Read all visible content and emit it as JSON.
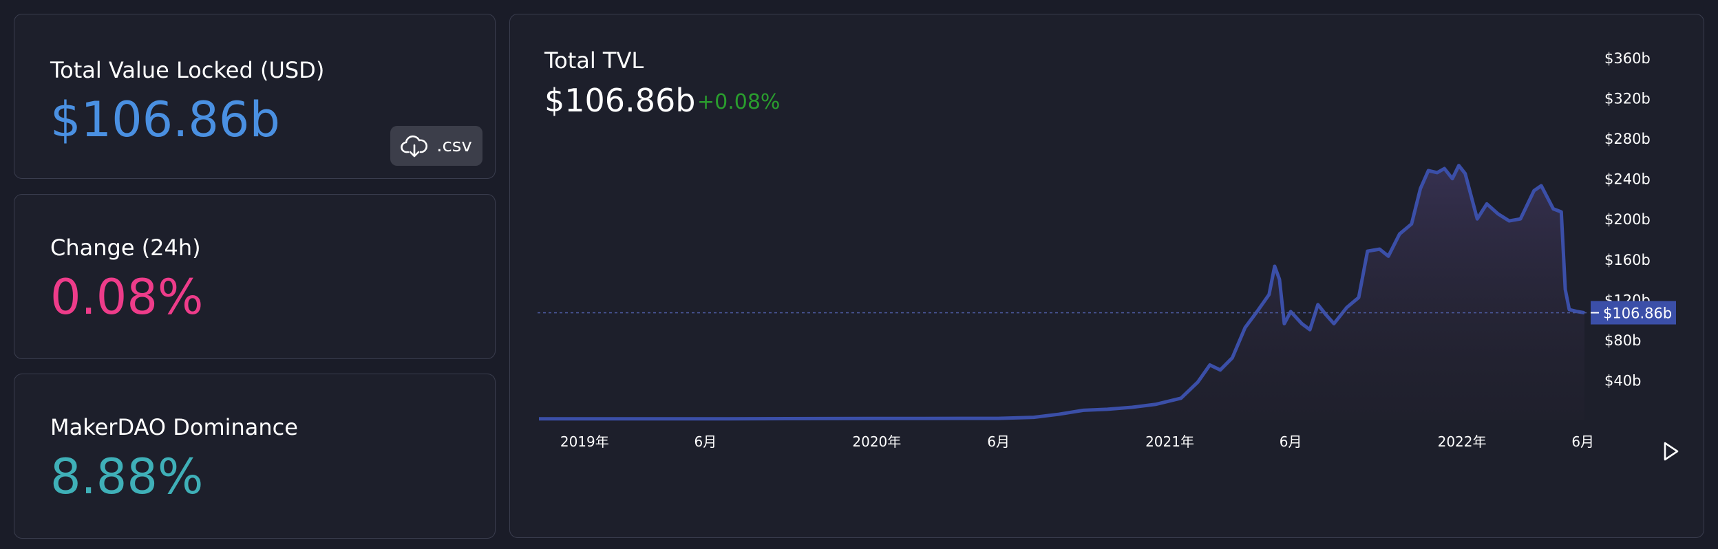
{
  "stats": {
    "tvl": {
      "label": "Total Value Locked (USD)",
      "value": "$106.86b",
      "csv_label": ".csv",
      "color": "#4a90e2"
    },
    "change": {
      "label": "Change (24h)",
      "value": "0.08%",
      "color": "#ee3c8a"
    },
    "dominance": {
      "label": "MakerDAO Dominance",
      "value": "8.88%",
      "color": "#3fb0b8"
    }
  },
  "chart_header": {
    "title": "Total TVL",
    "value": "$106.86b",
    "change": "+0.08%"
  },
  "chart_data": {
    "type": "area",
    "title": "",
    "xlabel": "",
    "ylabel": "",
    "ylim": [
      0,
      360
    ],
    "x_ticks": [
      "2019年",
      "6月",
      "2020年",
      "6月",
      "2021年",
      "6月",
      "2022年",
      "6月"
    ],
    "x_tick_dates": [
      "2019-01-01",
      "2019-06-01",
      "2020-01-01",
      "2020-06-01",
      "2021-01-01",
      "2021-06-01",
      "2022-01-01",
      "2022-06-01"
    ],
    "y_ticks": [
      "$360b",
      "$320b",
      "$280b",
      "$240b",
      "$200b",
      "$160b",
      "$120b",
      "$80b",
      "$40b"
    ],
    "y_tick_values": [
      360,
      320,
      280,
      240,
      200,
      160,
      120,
      80,
      40
    ],
    "current_label": "$106.86b",
    "current_value": 106.86,
    "series": [
      {
        "color": "#3b4fa8",
        "points": [
          [
            "2018-11-05",
            1.5
          ],
          [
            "2019-03-01",
            1.5
          ],
          [
            "2019-07-01",
            1.6
          ],
          [
            "2019-11-01",
            1.8
          ],
          [
            "2020-03-01",
            1.9
          ],
          [
            "2020-06-01",
            2.0
          ],
          [
            "2020-07-15",
            3.0
          ],
          [
            "2020-08-15",
            6.0
          ],
          [
            "2020-09-15",
            10.0
          ],
          [
            "2020-10-15",
            11.0
          ],
          [
            "2020-11-15",
            13.0
          ],
          [
            "2020-12-15",
            16.0
          ],
          [
            "2021-01-15",
            22.0
          ],
          [
            "2021-02-05",
            38.0
          ],
          [
            "2021-02-20",
            55.0
          ],
          [
            "2021-03-05",
            50.0
          ],
          [
            "2021-03-20",
            62.0
          ],
          [
            "2021-04-05",
            92.0
          ],
          [
            "2021-04-20",
            108.0
          ],
          [
            "2021-05-05",
            125.0
          ],
          [
            "2021-05-12",
            153.0
          ],
          [
            "2021-05-18",
            140.0
          ],
          [
            "2021-05-24",
            96.0
          ],
          [
            "2021-06-01",
            108.0
          ],
          [
            "2021-06-15",
            96.0
          ],
          [
            "2021-06-25",
            90.0
          ],
          [
            "2021-07-05",
            115.0
          ],
          [
            "2021-07-15",
            105.0
          ],
          [
            "2021-07-25",
            96.0
          ],
          [
            "2021-08-10",
            112.0
          ],
          [
            "2021-08-25",
            122.0
          ],
          [
            "2021-09-05",
            168.0
          ],
          [
            "2021-09-20",
            170.0
          ],
          [
            "2021-10-01",
            163.0
          ],
          [
            "2021-10-15",
            185.0
          ],
          [
            "2021-10-30",
            195.0
          ],
          [
            "2021-11-10",
            230.0
          ],
          [
            "2021-11-20",
            248.0
          ],
          [
            "2021-12-01",
            246.0
          ],
          [
            "2021-12-10",
            250.0
          ],
          [
            "2021-12-20",
            240.0
          ],
          [
            "2021-12-28",
            253.0
          ],
          [
            "2022-01-05",
            245.0
          ],
          [
            "2022-01-20",
            200.0
          ],
          [
            "2022-02-01",
            215.0
          ],
          [
            "2022-02-15",
            205.0
          ],
          [
            "2022-03-01",
            198.0
          ],
          [
            "2022-03-15",
            200.0
          ],
          [
            "2022-04-01",
            228.0
          ],
          [
            "2022-04-10",
            233.0
          ],
          [
            "2022-04-25",
            210.0
          ],
          [
            "2022-05-05",
            207.0
          ],
          [
            "2022-05-10",
            130.0
          ],
          [
            "2022-05-15",
            110.0
          ],
          [
            "2022-05-25",
            108.0
          ],
          [
            "2022-06-03",
            106.86
          ]
        ]
      }
    ]
  }
}
